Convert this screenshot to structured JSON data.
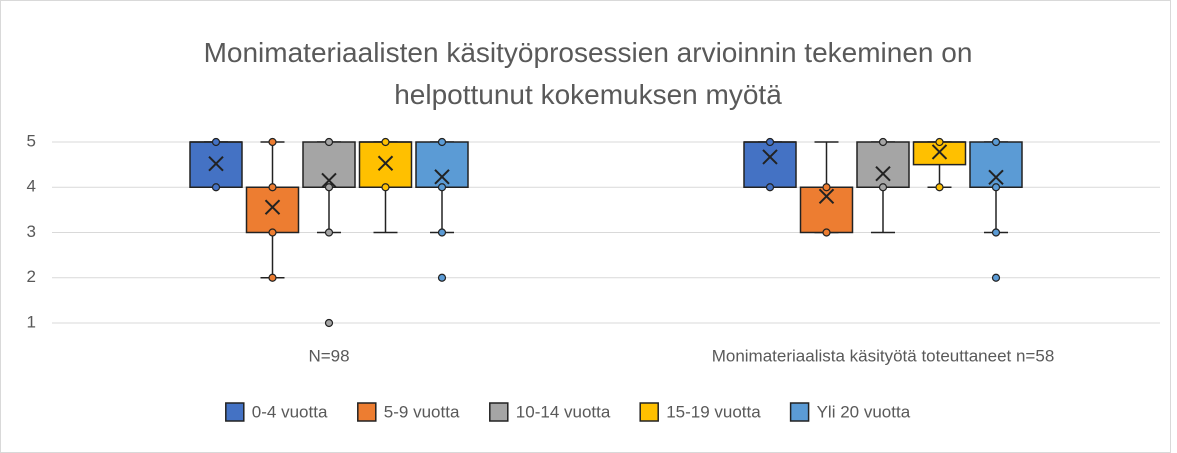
{
  "chart_data": {
    "type": "box",
    "title": "Monimateriaalisten käsityöprosessien arvioinnin tekeminen on helpottunut kokemuksen myötä",
    "categories": [
      "N=98",
      "Monimateriaalista käsityötä toteuttaneet n=58"
    ],
    "ylim": [
      1,
      5
    ],
    "yticks": [
      1,
      2,
      3,
      4,
      5
    ],
    "grid": true,
    "legend": "bottom",
    "series": [
      {
        "name": "0-4 vuotta",
        "color": "#4472c4",
        "values": [
          {
            "min": 4,
            "q1": 4,
            "median": 5,
            "q3": 5,
            "max": 5,
            "mean": 4.52,
            "points": [
              5,
              4
            ]
          },
          {
            "min": 4,
            "q1": 4,
            "median": 5,
            "q3": 5,
            "max": 5,
            "mean": 4.67,
            "points": [
              5,
              4
            ]
          }
        ]
      },
      {
        "name": "5-9 vuotta",
        "color": "#ed7d31",
        "values": [
          {
            "min": 2,
            "q1": 3,
            "median": 4,
            "q3": 4,
            "max": 5,
            "mean": 3.56,
            "points": [
              5,
              4,
              3,
              2
            ]
          },
          {
            "min": 3,
            "q1": 3,
            "median": 4,
            "q3": 4,
            "max": 5,
            "mean": 3.8,
            "points": [
              4,
              3
            ]
          }
        ]
      },
      {
        "name": "10-14 vuotta",
        "color": "#a5a5a5",
        "values": [
          {
            "min": 3,
            "q1": 4,
            "median": 4,
            "q3": 5,
            "max": 5,
            "mean": 4.15,
            "points": [
              5,
              4,
              3,
              1
            ]
          },
          {
            "min": 3,
            "q1": 4,
            "median": 4,
            "q3": 5,
            "max": 5,
            "mean": 4.3,
            "points": [
              5,
              4
            ]
          }
        ]
      },
      {
        "name": "15-19 vuotta",
        "color": "#ffc000",
        "values": [
          {
            "min": 3,
            "q1": 4,
            "median": 5,
            "q3": 5,
            "max": 5,
            "mean": 4.53,
            "points": [
              5,
              4
            ]
          },
          {
            "min": 4,
            "q1": 4.5,
            "median": 5,
            "q3": 5,
            "max": 5,
            "mean": 4.78,
            "points": [
              5,
              4
            ]
          }
        ]
      },
      {
        "name": "Yli 20 vuotta",
        "color": "#5b9bd5",
        "values": [
          {
            "min": 3,
            "q1": 4,
            "median": 4,
            "q3": 5,
            "max": 5,
            "mean": 4.23,
            "points": [
              5,
              4,
              3,
              2
            ]
          },
          {
            "min": 3,
            "q1": 4,
            "median": 4,
            "q3": 5,
            "max": 5,
            "mean": 4.22,
            "points": [
              5,
              4,
              3,
              2
            ]
          }
        ]
      }
    ]
  }
}
